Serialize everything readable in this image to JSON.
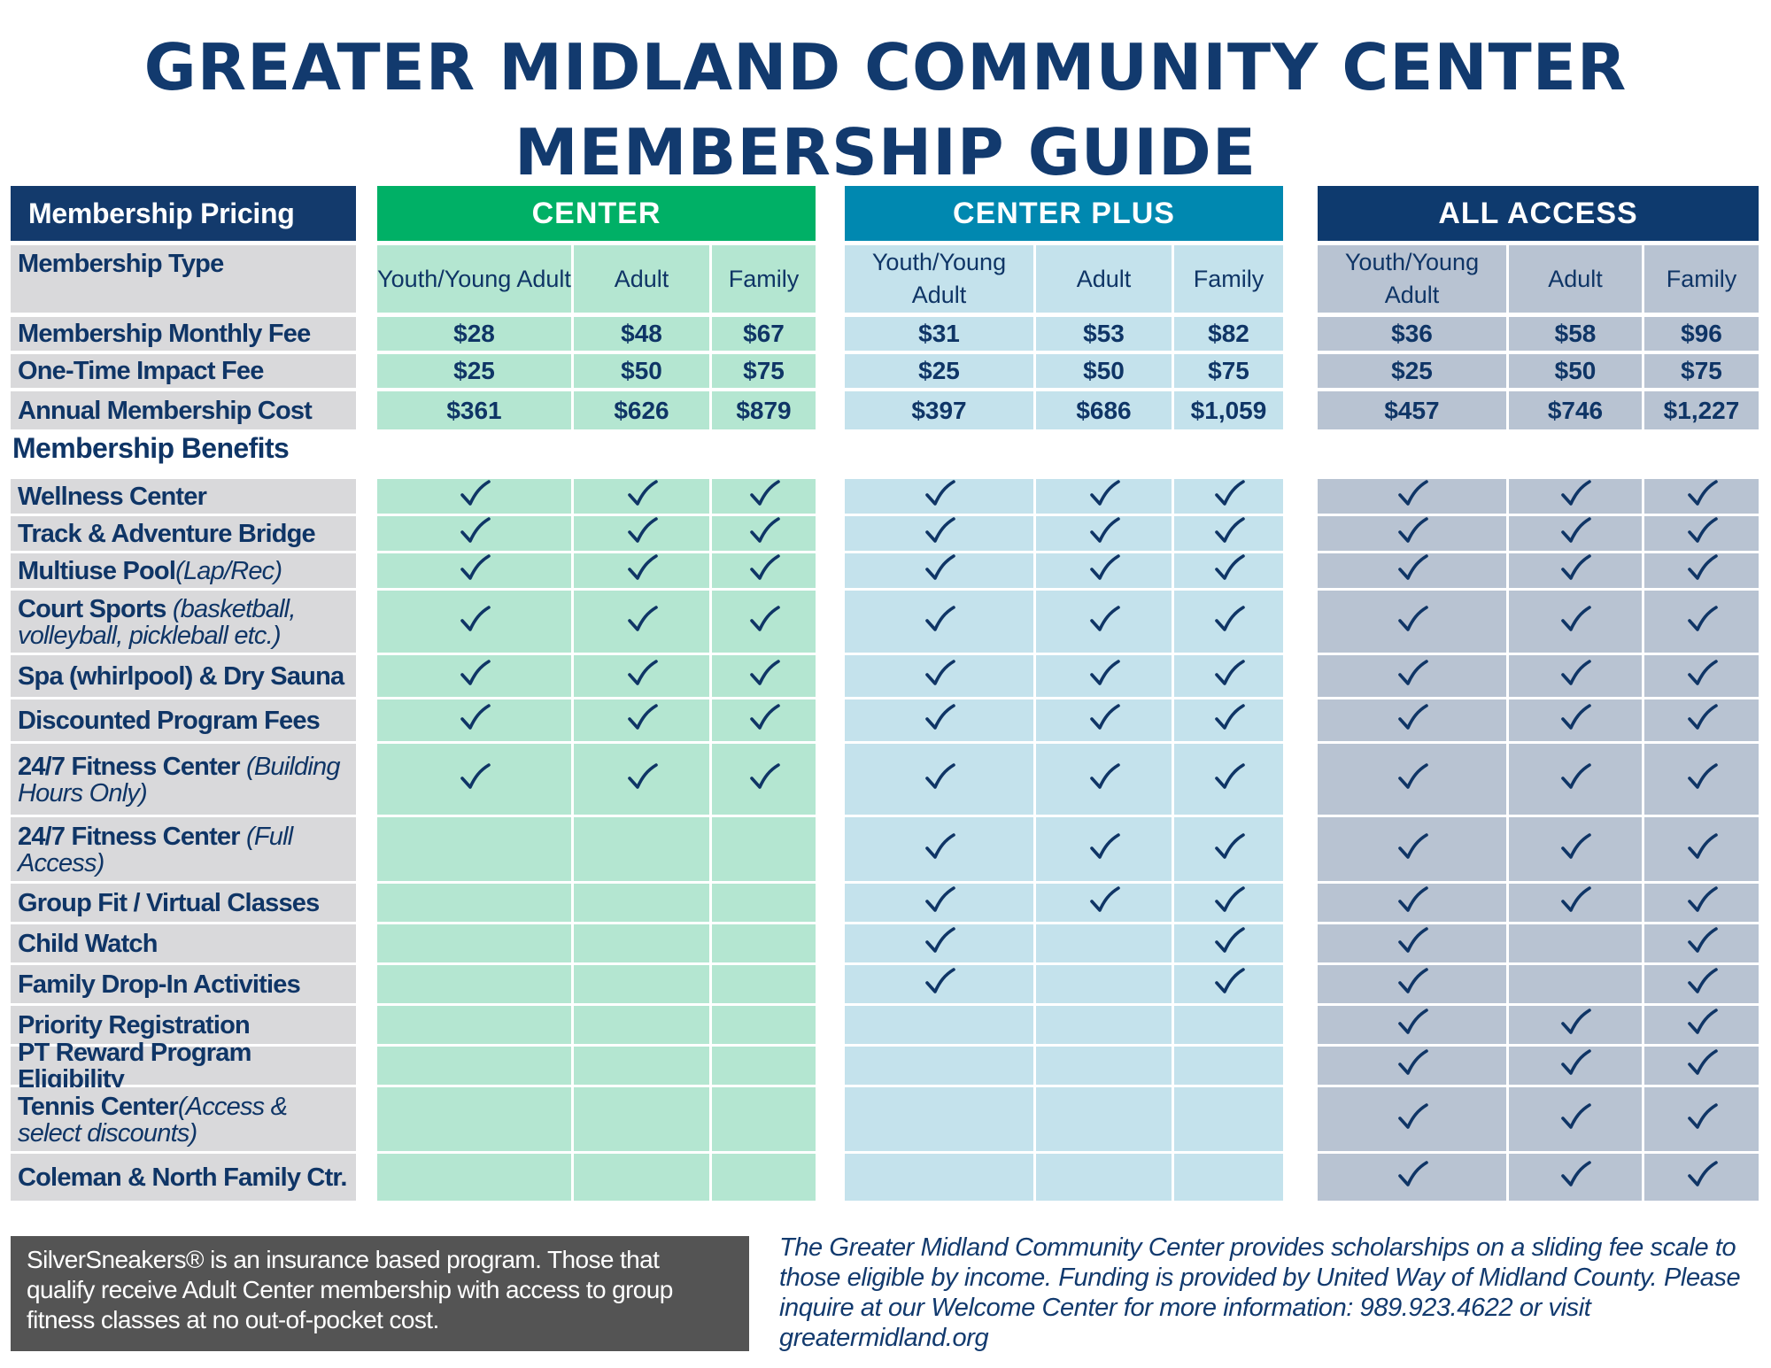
{
  "title": {
    "line1": "GREATER MIDLAND COMMUNITY CENTER",
    "line2": "MEMBERSHIP GUIDE"
  },
  "pricing_header": "Membership Pricing",
  "benefits_header": "Membership Benefits",
  "colors": {
    "navy": "#133a6c",
    "center_head": "#00b066",
    "center_cell": "#b4e6d1",
    "plus_head": "#0088b0",
    "plus_cell": "#c4e2ec",
    "all_head": "#0e3a6e",
    "all_cell": "#b8c3d2",
    "label_cell": "#d9d9db",
    "check": "#0f3566"
  },
  "tiers": [
    {
      "name": "CENTER",
      "columns": [
        "Youth/Young Adult",
        "Adult",
        "Family"
      ],
      "monthly": [
        "$28",
        "$48",
        "$67"
      ],
      "impact": [
        "$25",
        "$50",
        "$75"
      ],
      "annual": [
        "$361",
        "$626",
        "$879"
      ]
    },
    {
      "name": "CENTER PLUS",
      "columns": [
        "Youth/Young Adult",
        "Adult",
        "Family"
      ],
      "monthly": [
        "$31",
        "$53",
        "$82"
      ],
      "impact": [
        "$25",
        "$50",
        "$75"
      ],
      "annual": [
        "$397",
        "$686",
        "$1,059"
      ]
    },
    {
      "name": "ALL ACCESS",
      "columns": [
        "Youth/Young Adult",
        "Adult",
        "Family"
      ],
      "monthly": [
        "$36",
        "$58",
        "$96"
      ],
      "impact": [
        "$25",
        "$50",
        "$75"
      ],
      "annual": [
        "$457",
        "$746",
        "$1,227"
      ]
    }
  ],
  "pricing_rows": [
    {
      "label": "Membership Type"
    },
    {
      "label": "Membership Monthly Fee"
    },
    {
      "label": "One-Time Impact Fee"
    },
    {
      "label": "Annual Membership Cost"
    }
  ],
  "benefits": [
    {
      "label": "Wellness Center",
      "note": "",
      "checks": [
        [
          1,
          1,
          1
        ],
        [
          1,
          1,
          1
        ],
        [
          1,
          1,
          1
        ]
      ]
    },
    {
      "label": "Track & Adventure Bridge",
      "note": "",
      "checks": [
        [
          1,
          1,
          1
        ],
        [
          1,
          1,
          1
        ],
        [
          1,
          1,
          1
        ]
      ]
    },
    {
      "label": "Multiuse Pool ",
      "note": "(Lap/Rec)",
      "checks": [
        [
          1,
          1,
          1
        ],
        [
          1,
          1,
          1
        ],
        [
          1,
          1,
          1
        ]
      ]
    },
    {
      "label": "Court Sports ",
      "note": "(basketball, volleyball, pickleball etc.)",
      "checks": [
        [
          1,
          1,
          1
        ],
        [
          1,
          1,
          1
        ],
        [
          1,
          1,
          1
        ]
      ]
    },
    {
      "label": "Spa (whirlpool) & Dry Sauna",
      "note": "",
      "checks": [
        [
          1,
          1,
          1
        ],
        [
          1,
          1,
          1
        ],
        [
          1,
          1,
          1
        ]
      ]
    },
    {
      "label": "Discounted Program Fees",
      "note": "",
      "checks": [
        [
          1,
          1,
          1
        ],
        [
          1,
          1,
          1
        ],
        [
          1,
          1,
          1
        ]
      ]
    },
    {
      "label": "24/7 Fitness Center ",
      "note": "(Building Hours Only)",
      "checks": [
        [
          1,
          1,
          1
        ],
        [
          1,
          1,
          1
        ],
        [
          1,
          1,
          1
        ]
      ]
    },
    {
      "label": "24/7 Fitness Center ",
      "note": "(Full Access)",
      "checks": [
        [
          0,
          0,
          0
        ],
        [
          1,
          1,
          1
        ],
        [
          1,
          1,
          1
        ]
      ]
    },
    {
      "label": "Group Fit / Virtual Classes",
      "note": "",
      "checks": [
        [
          0,
          0,
          0
        ],
        [
          1,
          1,
          1
        ],
        [
          1,
          1,
          1
        ]
      ]
    },
    {
      "label": "Child Watch",
      "note": "",
      "checks": [
        [
          0,
          0,
          0
        ],
        [
          1,
          0,
          1
        ],
        [
          1,
          0,
          1
        ]
      ]
    },
    {
      "label": "Family Drop-In Activities",
      "note": "",
      "checks": [
        [
          0,
          0,
          0
        ],
        [
          1,
          0,
          1
        ],
        [
          1,
          0,
          1
        ]
      ]
    },
    {
      "label": "Priority Registration",
      "note": "",
      "checks": [
        [
          0,
          0,
          0
        ],
        [
          0,
          0,
          0
        ],
        [
          1,
          1,
          1
        ]
      ]
    },
    {
      "label": "PT Reward Program Eligibility",
      "note": "",
      "checks": [
        [
          0,
          0,
          0
        ],
        [
          0,
          0,
          0
        ],
        [
          1,
          1,
          1
        ]
      ]
    },
    {
      "label": "Tennis Center",
      "note": "(Access & select discounts)",
      "checks": [
        [
          0,
          0,
          0
        ],
        [
          0,
          0,
          0
        ],
        [
          1,
          1,
          1
        ]
      ]
    },
    {
      "label": "Coleman & North Family Ctr.",
      "note": "",
      "checks": [
        [
          0,
          0,
          0
        ],
        [
          0,
          0,
          0
        ],
        [
          1,
          1,
          1
        ]
      ]
    }
  ],
  "footer": {
    "silversneakers": "SilverSneakers® is an insurance based program. Those that qualify receive Adult Center membership with access to group fitness classes at no out-of-pocket cost.",
    "scholarship": "The Greater Midland Community Center provides scholarships on a sliding fee scale to those eligible by income. Funding is provided by United Way of Midland County. Please inquire at our Welcome Center for more information: 989.923.4622 or visit greatermidland.org"
  }
}
